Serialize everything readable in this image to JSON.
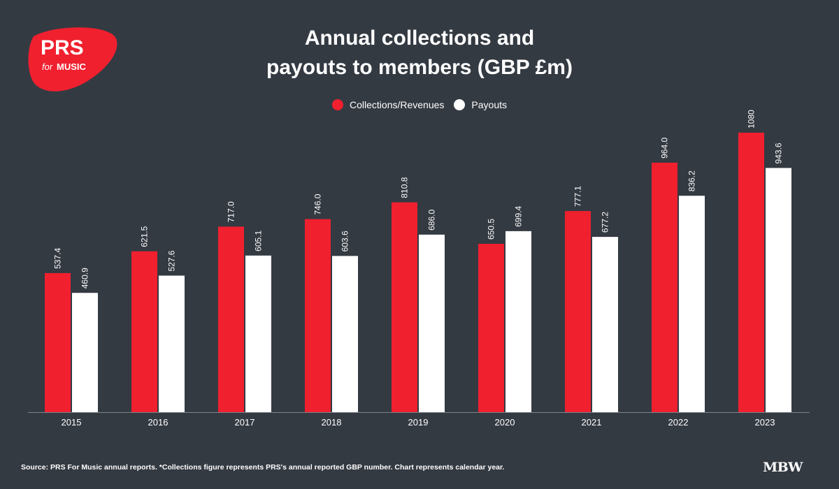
{
  "logo": {
    "line1": "PRS",
    "line2_italic": "for",
    "line2": "MUSIC"
  },
  "brand": "MBW",
  "colors": {
    "background": "#343a42",
    "collections": "#f0202f",
    "payouts": "#ffffff",
    "axis": "#7d838b"
  },
  "source": "Source: PRS For Music annual reports. *Collections figure represents PRS's annual reported GBP number. Chart represents calendar year.",
  "chart_data": {
    "type": "bar",
    "title": [
      "Annual collections and",
      "payouts to members (GBP £m)"
    ],
    "categories": [
      "2015",
      "2016",
      "2017",
      "2018",
      "2019",
      "2020",
      "2021",
      "2022",
      "2023"
    ],
    "series": [
      {
        "name": "Collections/Revenues",
        "values": [
          537.4,
          621.5,
          717.0,
          746.0,
          810.8,
          650.5,
          777.1,
          964.0,
          1080
        ],
        "labels": [
          "537.4",
          "621.5",
          "717.0",
          "746.0",
          "810.8",
          "650.5",
          "777.1",
          "964.0",
          "1080"
        ],
        "color": "#f0202f"
      },
      {
        "name": "Payouts",
        "values": [
          460.9,
          527.6,
          605.1,
          603.6,
          686.0,
          699.4,
          677.2,
          836.2,
          943.6
        ],
        "labels": [
          "460.9",
          "527.6",
          "605.1",
          "603.6",
          "686.0",
          "699.4",
          "677.2",
          "836.2",
          "943.6"
        ],
        "color": "#ffffff"
      }
    ],
    "ylim": [
      0,
      1100
    ],
    "xlabel": "",
    "ylabel": "",
    "grid": false,
    "legend": "top-center"
  }
}
